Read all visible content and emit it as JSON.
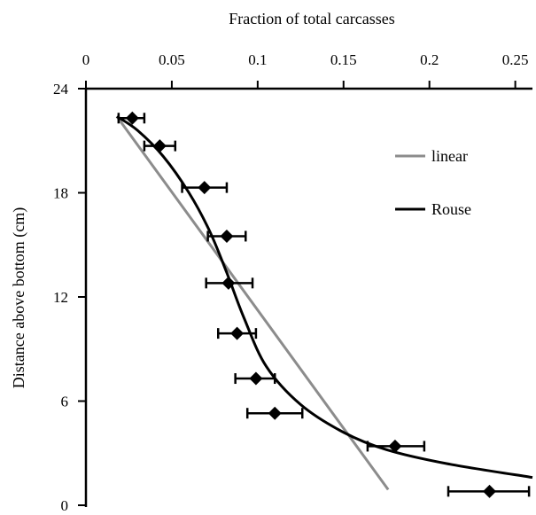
{
  "chart_data": {
    "type": "scatter",
    "title": "",
    "xlabel": "Fraction of total carcasses",
    "ylabel": "Distance above bottom (cm)",
    "xlim": [
      0,
      0.26
    ],
    "ylim": [
      0,
      24
    ],
    "x_ticks": [
      {
        "value": 0,
        "label": "0"
      },
      {
        "value": 0.05,
        "label": "0.05"
      },
      {
        "value": 0.1,
        "label": "0.1"
      },
      {
        "value": 0.15,
        "label": "0.15"
      },
      {
        "value": 0.2,
        "label": "0.2"
      },
      {
        "value": 0.25,
        "label": "0.25"
      }
    ],
    "y_ticks": [
      {
        "value": 0,
        "label": "0"
      },
      {
        "value": 6,
        "label": "6"
      },
      {
        "value": 12,
        "label": "12"
      },
      {
        "value": 18,
        "label": "18"
      },
      {
        "value": 24,
        "label": "24"
      }
    ],
    "x_axis_position": "top",
    "grid": false,
    "legend_position": "top-right",
    "points": [
      {
        "x": 0.027,
        "y": 22.3,
        "xerr_low": 0.008,
        "xerr_high": 0.007
      },
      {
        "x": 0.043,
        "y": 20.7,
        "xerr_low": 0.009,
        "xerr_high": 0.009
      },
      {
        "x": 0.069,
        "y": 18.3,
        "xerr_low": 0.013,
        "xerr_high": 0.013
      },
      {
        "x": 0.082,
        "y": 15.5,
        "xerr_low": 0.011,
        "xerr_high": 0.011
      },
      {
        "x": 0.083,
        "y": 12.8,
        "xerr_low": 0.013,
        "xerr_high": 0.014
      },
      {
        "x": 0.088,
        "y": 9.9,
        "xerr_low": 0.011,
        "xerr_high": 0.011
      },
      {
        "x": 0.099,
        "y": 7.3,
        "xerr_low": 0.012,
        "xerr_high": 0.011
      },
      {
        "x": 0.11,
        "y": 5.3,
        "xerr_low": 0.016,
        "xerr_high": 0.016
      },
      {
        "x": 0.18,
        "y": 3.4,
        "xerr_low": 0.016,
        "xerr_high": 0.017
      },
      {
        "x": 0.235,
        "y": 0.8,
        "xerr_low": 0.024,
        "xerr_high": 0.023
      }
    ],
    "lines": [
      {
        "name": "linear",
        "color": "#8c8c8c",
        "x": [
          0.018,
          0.176
        ],
        "y": [
          22.4,
          0.9
        ]
      },
      {
        "name": "Rouse",
        "color": "#000000",
        "x": [
          0.018,
          0.03,
          0.045,
          0.06,
          0.072,
          0.082,
          0.092,
          0.105,
          0.125,
          0.15,
          0.175,
          0.21,
          0.26
        ],
        "y": [
          22.4,
          21.6,
          20.1,
          18.0,
          15.8,
          13.4,
          10.8,
          8.0,
          5.8,
          4.2,
          3.2,
          2.4,
          1.6
        ]
      }
    ],
    "legend": [
      {
        "label": "linear",
        "color": "#8c8c8c"
      },
      {
        "label": "Rouse",
        "color": "#000000"
      }
    ]
  }
}
